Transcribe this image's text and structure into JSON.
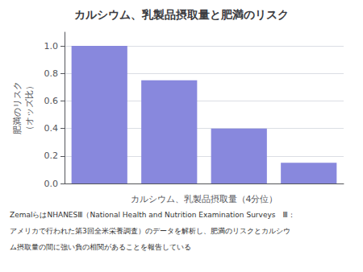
{
  "chart_data": {
    "type": "bar",
    "title": "カルシウム、乳製品摂取量と肥満のリスク",
    "xlabel": "カルシウム、乳製品摂取量（4分位）",
    "ylabel": "肥満のリスク\n（オッズ比）",
    "categories": [
      null,
      null,
      null,
      null
    ],
    "values": [
      1.0,
      0.75,
      0.4,
      0.15
    ],
    "color": "#8888dd",
    "ylim": [
      0,
      1.1
    ],
    "yticks": [
      {
        "value": 0,
        "label": "0.0"
      },
      0.2,
      0.4,
      0.6,
      0.8,
      {
        "value": 1,
        "label": "1.0"
      }
    ],
    "grid": true,
    "annotations": [
      "ZemalらはNHANESⅢ（National Health and Nutrition Examination Surveys　Ⅲ：",
      "アメリカで行われた第3回全米栄養調査）のデータを解析し、肥満のリスクとカルシウ",
      "ム摂取量の間に強い負の相関があることを報告している"
    ]
  }
}
